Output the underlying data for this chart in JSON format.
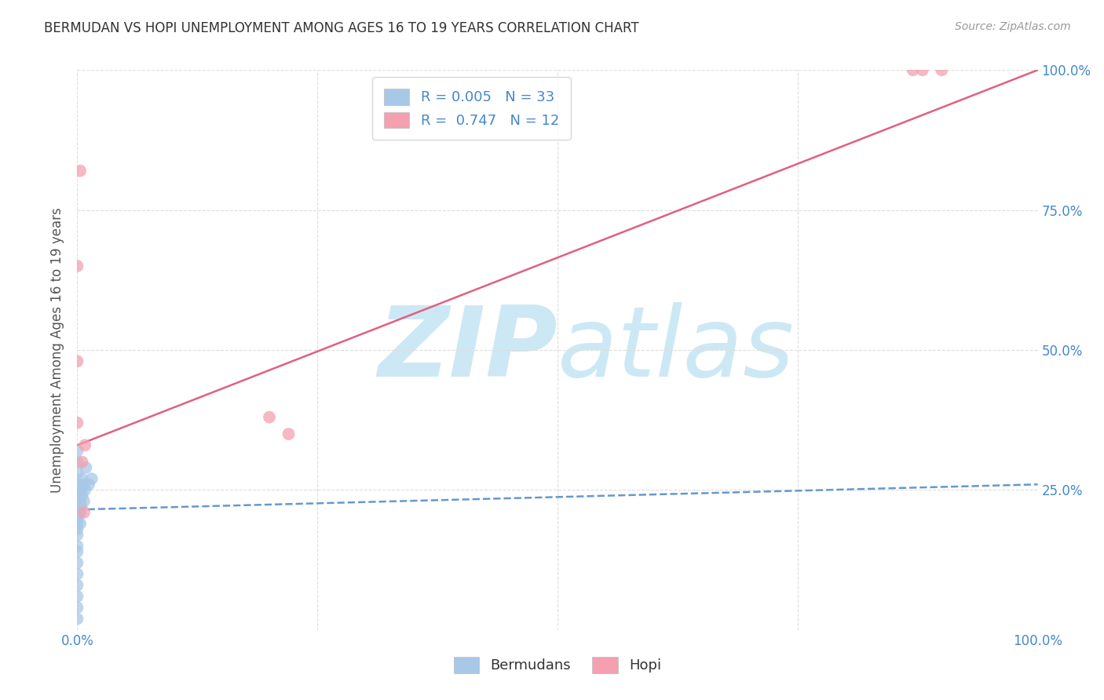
{
  "title": "BERMUDAN VS HOPI UNEMPLOYMENT AMONG AGES 16 TO 19 YEARS CORRELATION CHART",
  "source": "Source: ZipAtlas.com",
  "ylabel": "Unemployment Among Ages 16 to 19 years",
  "xlim": [
    0.0,
    1.0
  ],
  "ylim": [
    0.0,
    1.0
  ],
  "xticks": [
    0.0,
    0.25,
    0.5,
    0.75,
    1.0
  ],
  "yticks": [
    0.0,
    0.25,
    0.5,
    0.75,
    1.0
  ],
  "xtick_labels": [
    "0.0%",
    "",
    "",
    "",
    "100.0%"
  ],
  "background_color": "#ffffff",
  "watermark_zip": "ZIP",
  "watermark_atlas": "atlas",
  "watermark_color": "#cde8f5",
  "legend_bermudans_label": "Bermudans",
  "legend_hopi_label": "Hopi",
  "legend_line1": "R = 0.005   N = 33",
  "legend_line2": "R =  0.747   N = 12",
  "bermudans_color": "#a8c8e8",
  "hopi_color": "#f4a0b0",
  "bermudans_trend_color": "#6699cc",
  "hopi_trend_color": "#e06080",
  "bermudans_scatter_x": [
    0.0,
    0.0,
    0.0,
    0.0,
    0.0,
    0.0,
    0.0,
    0.0,
    0.0,
    0.0,
    0.0,
    0.0,
    0.0,
    0.0,
    0.0,
    0.0,
    0.0,
    0.0,
    0.0,
    0.0,
    0.003,
    0.003,
    0.003,
    0.004,
    0.004,
    0.005,
    0.005,
    0.007,
    0.007,
    0.008,
    0.009,
    0.012,
    0.015
  ],
  "bermudans_scatter_y": [
    0.02,
    0.04,
    0.06,
    0.08,
    0.1,
    0.12,
    0.14,
    0.15,
    0.17,
    0.18,
    0.19,
    0.2,
    0.21,
    0.22,
    0.23,
    0.24,
    0.26,
    0.28,
    0.3,
    0.32,
    0.19,
    0.21,
    0.23,
    0.22,
    0.25,
    0.24,
    0.27,
    0.23,
    0.26,
    0.25,
    0.29,
    0.26,
    0.27
  ],
  "hopi_scatter_x": [
    0.0,
    0.0,
    0.0,
    0.003,
    0.005,
    0.87,
    0.88,
    0.9,
    0.007,
    0.008,
    0.2,
    0.22
  ],
  "hopi_scatter_y": [
    0.37,
    0.48,
    0.65,
    0.82,
    0.3,
    1.0,
    1.0,
    1.0,
    0.21,
    0.33,
    0.38,
    0.35
  ],
  "bermudans_trend_x": [
    0.0,
    1.0
  ],
  "bermudans_trend_y": [
    0.215,
    0.26
  ],
  "hopi_trend_x": [
    0.0,
    1.0
  ],
  "hopi_trend_y": [
    0.33,
    1.0
  ],
  "grid_color": "#dddddd",
  "title_color": "#333333",
  "axis_label_color": "#555555",
  "tick_label_color": "#4488cc",
  "right_ytick_labels": [
    "25.0%",
    "50.0%",
    "75.0%",
    "100.0%"
  ],
  "right_ytick_pos": [
    0.25,
    0.5,
    0.75,
    1.0
  ],
  "bottom_legend_labels": [
    "Bermudans",
    "Hopi"
  ]
}
